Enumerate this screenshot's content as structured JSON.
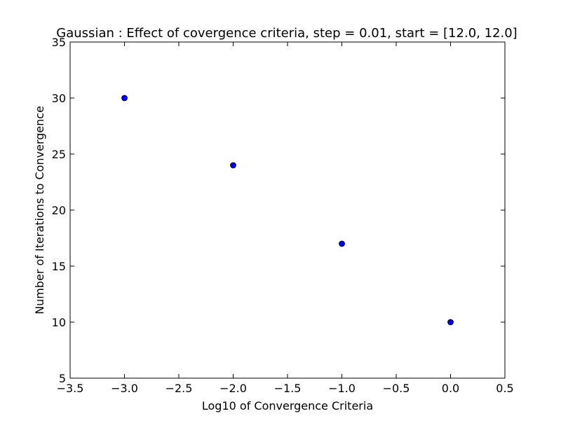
{
  "chart_data": {
    "type": "scatter",
    "title": "Gaussian : Effect of covergence criteria, step = 0.01, start = [12.0, 12.0]",
    "xlabel": "Log10 of Convergence Criteria",
    "ylabel": "Number of Iterations to Convergence",
    "xlim": [
      -3.5,
      0.5
    ],
    "ylim": [
      5,
      35
    ],
    "xticks": [
      -3.5,
      -3.0,
      -2.5,
      -2.0,
      -1.5,
      -1.0,
      -0.5,
      0.0,
      0.5
    ],
    "xtick_labels": [
      "−3.5",
      "−3.0",
      "−2.5",
      "−2.0",
      "−1.5",
      "−1.0",
      "−0.5",
      "0.0",
      "0.5"
    ],
    "yticks": [
      5,
      10,
      15,
      20,
      25,
      30,
      35
    ],
    "ytick_labels": [
      "5",
      "10",
      "15",
      "20",
      "25",
      "30",
      "35"
    ],
    "grid": false,
    "series": [
      {
        "x": [
          -3.0,
          -2.0,
          -1.0,
          0.0
        ],
        "y": [
          30,
          24,
          17,
          10
        ],
        "color": "#0000ff",
        "marker": "circle"
      }
    ]
  }
}
